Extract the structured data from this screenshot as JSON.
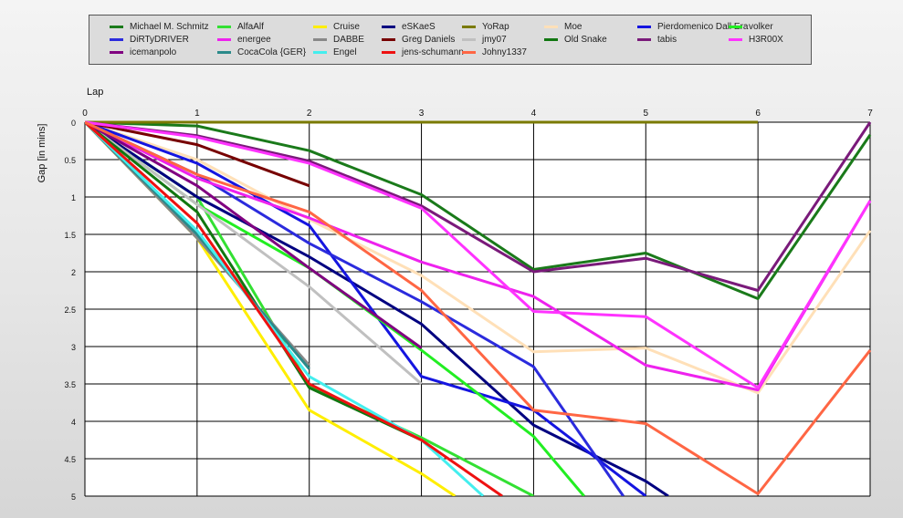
{
  "chart_data": {
    "type": "line",
    "xlabel": "Lap",
    "ylabel": "Gap [in mins]",
    "x_ticks": [
      0,
      1,
      2,
      3,
      4,
      5,
      6,
      7
    ],
    "y_ticks": [
      "0",
      "0.5",
      "1",
      "1.5",
      "2",
      "2.5",
      "3",
      "3.5",
      "4",
      "4.5",
      "5"
    ],
    "xlim": [
      0,
      7
    ],
    "ylim": [
      0,
      5
    ],
    "y_inverted": true,
    "grid": true,
    "legend_position": "top",
    "series": [
      {
        "name": "Michael M. Schmitz",
        "color": "#1a7a1a",
        "points": [
          [
            0,
            0
          ],
          [
            1,
            0.05
          ],
          [
            2,
            0.38
          ],
          [
            3,
            0.97
          ],
          [
            4,
            1.97
          ],
          [
            5,
            1.75
          ],
          [
            6,
            2.36
          ],
          [
            7,
            0.17
          ]
        ]
      },
      {
        "name": "AlfaAlf",
        "color": "#33e033",
        "points": [
          [
            0,
            0
          ],
          [
            1,
            1.0
          ],
          [
            2,
            3.52
          ],
          [
            3,
            4.22
          ],
          [
            4,
            5.0
          ]
        ]
      },
      {
        "name": "Cruise",
        "color": "#ffee00",
        "points": [
          [
            0,
            0
          ],
          [
            1,
            1.55
          ],
          [
            2,
            3.85
          ],
          [
            3,
            4.7
          ],
          [
            3.3,
            5.0
          ]
        ]
      },
      {
        "name": "eSKaeS",
        "color": "#000080",
        "points": [
          [
            0,
            0
          ],
          [
            1,
            1.0
          ],
          [
            2,
            1.8
          ],
          [
            3,
            2.7
          ],
          [
            4,
            4.05
          ],
          [
            5,
            4.8
          ],
          [
            5.2,
            5.0
          ]
        ]
      },
      {
        "name": "YoRap",
        "color": "#7a7a00",
        "points": [
          [
            0,
            0
          ],
          [
            1,
            0
          ],
          [
            2,
            0
          ],
          [
            3,
            0
          ],
          [
            4,
            0
          ],
          [
            5,
            0
          ],
          [
            6,
            0
          ]
        ]
      },
      {
        "name": "Moe",
        "color": "#ffe0b8",
        "points": [
          [
            0,
            0
          ],
          [
            1,
            0.5
          ],
          [
            2,
            1.3
          ],
          [
            3,
            2.05
          ],
          [
            4,
            3.07
          ],
          [
            5,
            3.02
          ],
          [
            6,
            3.62
          ],
          [
            7,
            1.45
          ]
        ]
      },
      {
        "name": "Pierdomenico Dall Era",
        "color": "#1515e0",
        "points": [
          [
            0,
            0
          ],
          [
            1,
            0.55
          ],
          [
            2,
            1.38
          ],
          [
            3,
            3.4
          ],
          [
            4,
            3.85
          ],
          [
            5,
            5.0
          ]
        ]
      },
      {
        "name": "volker",
        "color": "#22ee22",
        "points": [
          [
            0,
            0
          ],
          [
            1,
            1.1
          ],
          [
            2,
            1.95
          ],
          [
            3,
            3.05
          ],
          [
            4,
            4.2
          ],
          [
            4.45,
            5.0
          ]
        ]
      },
      {
        "name": "DiRTyDRIVER",
        "color": "#2b2bdd",
        "points": [
          [
            0,
            0
          ],
          [
            1,
            0.7
          ],
          [
            2,
            1.62
          ],
          [
            3,
            2.4
          ],
          [
            4,
            3.27
          ],
          [
            4.8,
            5.0
          ]
        ]
      },
      {
        "name": "energee",
        "color": "#ee22ee",
        "points": [
          [
            0,
            0
          ],
          [
            1,
            0.75
          ],
          [
            2,
            1.28
          ],
          [
            3,
            1.87
          ],
          [
            4,
            2.33
          ],
          [
            5,
            3.25
          ],
          [
            6,
            3.58
          ],
          [
            7,
            1.05
          ]
        ]
      },
      {
        "name": "DABBE",
        "color": "#888888",
        "points": [
          [
            0,
            0
          ],
          [
            1,
            1.55
          ],
          [
            2,
            3.25
          ]
        ]
      },
      {
        "name": "Greg Daniels",
        "color": "#770000",
        "points": [
          [
            0,
            0
          ],
          [
            1,
            0.3
          ],
          [
            2,
            0.85
          ]
        ]
      },
      {
        "name": "jmy07",
        "color": "#c0c0c0",
        "points": [
          [
            0,
            0
          ],
          [
            1,
            1.1
          ],
          [
            2,
            2.2
          ],
          [
            3,
            3.5
          ]
        ]
      },
      {
        "name": "Old Snake",
        "color": "#117711",
        "points": [
          [
            0,
            0
          ],
          [
            1,
            1.2
          ],
          [
            2,
            3.55
          ],
          [
            3,
            4.25
          ]
        ]
      },
      {
        "name": "tabis",
        "color": "#7a1a7a",
        "points": [
          [
            0,
            0
          ],
          [
            1,
            0.18
          ],
          [
            2,
            0.52
          ],
          [
            3,
            1.12
          ],
          [
            4,
            2.0
          ],
          [
            5,
            1.82
          ],
          [
            6,
            2.25
          ],
          [
            7,
            0.0
          ]
        ]
      },
      {
        "name": "H3R00X",
        "color": "#ff33ff",
        "points": [
          [
            0,
            0
          ],
          [
            1,
            0.2
          ],
          [
            2,
            0.55
          ],
          [
            3,
            1.15
          ],
          [
            4,
            2.53
          ],
          [
            5,
            2.6
          ],
          [
            6,
            3.55
          ],
          [
            7,
            1.05
          ]
        ]
      },
      {
        "name": "icemanpolo",
        "color": "#800080",
        "points": [
          [
            0,
            0
          ],
          [
            1,
            0.85
          ],
          [
            2,
            1.95
          ],
          [
            3,
            3.02
          ]
        ]
      },
      {
        "name": "CocaCola {GER}",
        "color": "#2a8a8a",
        "points": [
          [
            0,
            0
          ],
          [
            1,
            1.5
          ],
          [
            2,
            3.3
          ]
        ]
      },
      {
        "name": "Engel",
        "color": "#44eeee",
        "points": [
          [
            0,
            0
          ],
          [
            1,
            1.45
          ],
          [
            2,
            3.4
          ],
          [
            3,
            4.25
          ],
          [
            3.55,
            5.0
          ]
        ]
      },
      {
        "name": "jens-schumann",
        "color": "#ee1111",
        "points": [
          [
            0,
            0
          ],
          [
            1,
            1.35
          ],
          [
            2,
            3.5
          ],
          [
            3,
            4.25
          ],
          [
            3.72,
            5.0
          ]
        ]
      },
      {
        "name": "Johny1337",
        "color": "#ff6644",
        "points": [
          [
            0,
            0
          ],
          [
            1,
            0.7
          ],
          [
            2,
            1.2
          ],
          [
            3,
            2.25
          ],
          [
            4,
            3.85
          ],
          [
            5,
            4.03
          ],
          [
            6,
            4.97
          ],
          [
            7,
            3.05
          ]
        ]
      }
    ]
  }
}
